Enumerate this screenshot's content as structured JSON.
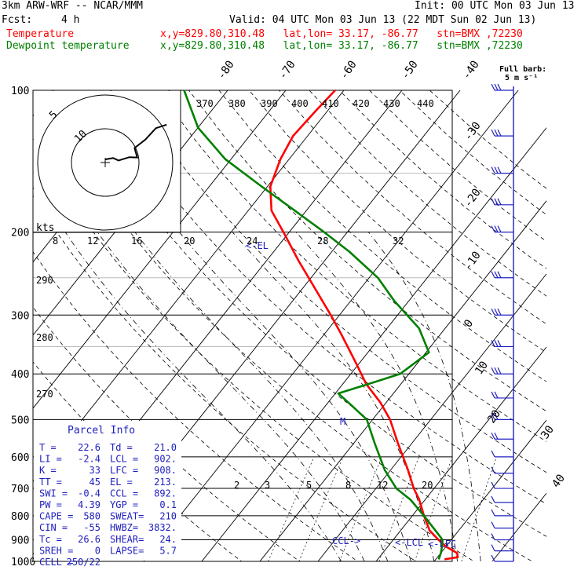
{
  "header": {
    "model": "3km ARW-WRF -- NCAR/MMM",
    "init": "Init: 00 UTC Mon 03 Jun 13",
    "fcst_label": "Fcst:",
    "fcst_value": "4 h",
    "valid": "Valid: 04 UTC Mon 03 Jun 13 (22 MDT Sun 02 Jun 13)"
  },
  "legend": [
    {
      "name": "Temperature",
      "info": "x,y=829.80,310.48   lat,lon= 33.17, -86.77   stn=BMX ,72230",
      "color": "#ff0000"
    },
    {
      "name": "Dewpoint temperature",
      "info": "x,y=829.80,310.48   lat,lon= 33.17, -86.77   stn=BMX ,72230",
      "color": "#008000"
    }
  ],
  "wind_key": {
    "title": "Full barb:",
    "value": "5 m s⁻¹"
  },
  "hodograph": {
    "units": "kts",
    "ring_labels": [
      "5",
      "10"
    ]
  },
  "parcel_info": {
    "title": "Parcel Info",
    "rows": [
      [
        "T   =",
        "22.6",
        "Td =",
        "21.0"
      ],
      [
        "LI  =",
        "-2.4",
        "LCL =",
        "902."
      ],
      [
        "K   =",
        "33",
        "LFC =",
        "908."
      ],
      [
        "TT  =",
        "45",
        "EL  =",
        "213."
      ],
      [
        "SWI =",
        "-0.4",
        "CCL =",
        "892."
      ],
      [
        "PW  =",
        "4.39",
        "YGP =",
        "0.1"
      ],
      [
        "CAPE =",
        "580",
        "SWEAT=",
        "210"
      ],
      [
        "CIN =",
        "-55",
        "HWBZ=",
        "3832."
      ],
      [
        "Tc  =",
        "26.6",
        "SHEAR=",
        "24."
      ],
      [
        "SREH =",
        "0",
        "LAPSE=",
        "5.7"
      ],
      [
        "CELL =",
        "250/22",
        "",
        ""
      ]
    ]
  },
  "annotations": {
    "el": "<-EL",
    "ccl": "CCL->",
    "lcl": "<-LCL",
    "lfc": "<-LFC",
    "m": "M"
  },
  "colors": {
    "temperature": "#ff0000",
    "dewpoint": "#008000",
    "wind": "#2020c0",
    "isotherm": "#000000"
  },
  "chart_data": {
    "type": "line",
    "title": "",
    "xlabel": "",
    "ylabel": "",
    "y_scale": "log",
    "pressure_levels": [
      100,
      200,
      300,
      400,
      500,
      600,
      700,
      800,
      900,
      1000
    ],
    "isotherm_labels": [
      "-80",
      "-70",
      "-60",
      "-50",
      "-40",
      "-30",
      "-20",
      "-10",
      "0",
      "10",
      "20",
      "30",
      "40"
    ],
    "theta_labels": [
      "370",
      "380",
      "390",
      "400",
      "410",
      "420",
      "430",
      "440"
    ],
    "theta_side_labels": [
      "290",
      "280",
      "270"
    ],
    "mixing_ratio_labels_top": [
      "8",
      "12",
      "16",
      "20",
      "24",
      "28",
      "32"
    ],
    "mixing_ratio_labels_bottom": [
      "2",
      "3",
      "5",
      "8",
      "12",
      "20"
    ],
    "series": [
      {
        "name": "Temperature",
        "pressure": [
          990,
          980,
          960,
          930,
          900,
          860,
          800,
          740,
          700,
          640,
          560,
          500,
          460,
          420,
          380,
          330,
          300,
          260,
          230,
          200,
          180,
          160,
          140,
          125,
          110,
          100
        ],
        "values": [
          21.5,
          23.5,
          22.8,
          20.0,
          17.8,
          15.0,
          12.0,
          9.0,
          6.5,
          3.0,
          -2.5,
          -7.0,
          -11.0,
          -16.0,
          -20.5,
          -27.0,
          -31.5,
          -38.5,
          -44.5,
          -51.0,
          -56.0,
          -59.5,
          -61.5,
          -62.5,
          -62.0,
          -61.5
        ]
      },
      {
        "name": "Dewpoint temperature",
        "pressure": [
          990,
          960,
          930,
          900,
          860,
          800,
          740,
          700,
          640,
          560,
          500,
          460,
          440,
          420,
          400,
          360,
          320,
          280,
          250,
          220,
          200,
          180,
          160,
          140,
          120,
          100
        ],
        "values": [
          20.5,
          20.0,
          19.3,
          18.5,
          16.0,
          12.0,
          7.5,
          3.5,
          -1.0,
          -6.5,
          -11.0,
          -16.5,
          -19.5,
          -15.5,
          -11.5,
          -9.5,
          -14.5,
          -22.5,
          -28.5,
          -37.0,
          -44.0,
          -52.0,
          -61.0,
          -71.0,
          -80.0,
          -87.5
        ]
      }
    ],
    "wind_barbs": {
      "pressure": [
        1000,
        950,
        900,
        850,
        800,
        750,
        700,
        650,
        600,
        550,
        500,
        450,
        400,
        350,
        300,
        250,
        200,
        175,
        150,
        125,
        100
      ],
      "speed_ms": [
        5,
        5,
        5,
        5,
        5,
        5,
        5,
        5,
        5,
        10,
        10,
        10,
        15,
        15,
        15,
        15,
        15,
        15,
        15,
        15,
        15
      ]
    },
    "hodograph_trace": [
      [
        0,
        0
      ],
      [
        3,
        0
      ],
      [
        5,
        -2
      ],
      [
        9,
        -1
      ],
      [
        12,
        -2
      ],
      [
        11,
        4
      ],
      [
        15,
        8
      ],
      [
        19,
        14
      ],
      [
        23,
        15
      ]
    ],
    "x_range": [
      -40,
      45
    ],
    "y_range": [
      1000,
      100
    ]
  }
}
